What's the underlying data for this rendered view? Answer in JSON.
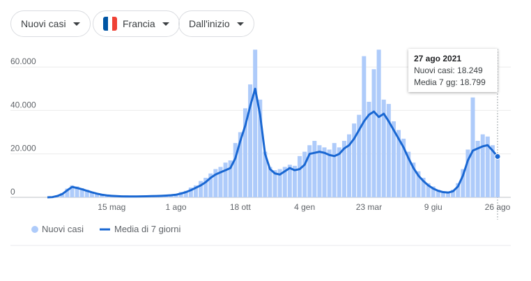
{
  "filters": {
    "metric": "Nuovi casi",
    "country": "Francia",
    "range": "Dall'inizio"
  },
  "tooltip": {
    "date": "27 ago 2021",
    "cases": "Nuovi casi: 18.249",
    "average": "Media 7 gg: 18.799"
  },
  "chart_data": {
    "type": "bar-line",
    "categories": [
      null,
      null,
      null,
      null,
      null,
      null,
      null,
      null,
      null,
      null,
      null,
      null,
      null,
      "15 mag",
      null,
      null,
      null,
      null,
      null,
      null,
      null,
      null,
      null,
      null,
      null,
      null,
      "1 ago",
      null,
      null,
      null,
      null,
      null,
      null,
      null,
      null,
      null,
      null,
      null,
      null,
      "18 ott",
      null,
      null,
      null,
      null,
      null,
      null,
      null,
      null,
      null,
      null,
      null,
      null,
      "4 gen",
      null,
      null,
      null,
      null,
      null,
      null,
      null,
      null,
      null,
      null,
      null,
      null,
      "23 mar",
      null,
      null,
      null,
      null,
      null,
      null,
      null,
      null,
      null,
      null,
      null,
      null,
      "9 giu",
      null,
      null,
      null,
      null,
      null,
      null,
      null,
      null,
      null,
      null,
      null,
      null,
      "26 ago"
    ],
    "series": [
      {
        "name": "Nuovi casi",
        "kind": "bar",
        "color": "#aecbfa",
        "values": [
          0,
          200,
          900,
          2000,
          4000,
          5500,
          5000,
          4200,
          3500,
          2600,
          1900,
          1400,
          1000,
          800,
          600,
          500,
          900,
          450,
          500,
          550,
          600,
          700,
          750,
          900,
          1000,
          1300,
          1500,
          2500,
          3000,
          4500,
          5500,
          7500,
          9000,
          11000,
          13000,
          14000,
          16000,
          17000,
          25000,
          30000,
          41000,
          52000,
          68000,
          45000,
          21000,
          14000,
          12500,
          13000,
          14000,
          15000,
          14500,
          19000,
          21000,
          24000,
          26000,
          24000,
          23000,
          22000,
          25000,
          23000,
          26000,
          29000,
          34000,
          38000,
          65000,
          44000,
          59000,
          68000,
          45000,
          43000,
          35000,
          31000,
          27000,
          21000,
          16000,
          12000,
          9000,
          6500,
          5000,
          3500,
          2800,
          2600,
          3500,
          6500,
          13000,
          22000,
          46000,
          26000,
          29000,
          28000,
          24000,
          18249
        ]
      },
      {
        "name": "Media di 7 giorni",
        "kind": "line",
        "color": "#1967d2",
        "values": [
          0,
          100,
          600,
          1500,
          3200,
          4800,
          4300,
          3700,
          3000,
          2300,
          1700,
          1200,
          900,
          700,
          550,
          450,
          400,
          400,
          420,
          450,
          500,
          550,
          600,
          700,
          800,
          950,
          1200,
          1700,
          2400,
          3300,
          4400,
          5500,
          7000,
          9000,
          10500,
          11500,
          12500,
          13500,
          18000,
          26000,
          33000,
          42000,
          50000,
          38000,
          20000,
          13000,
          11000,
          10500,
          12000,
          13500,
          12500,
          13000,
          15000,
          20000,
          20500,
          21000,
          20500,
          19500,
          19000,
          20000,
          22500,
          24000,
          27000,
          31000,
          35000,
          38000,
          39500,
          37000,
          38500,
          35000,
          31000,
          27000,
          23000,
          18000,
          13500,
          10000,
          7500,
          5500,
          4000,
          3000,
          2400,
          2200,
          2800,
          5000,
          10000,
          17000,
          21500,
          22500,
          23500,
          24000,
          21500,
          18799
        ]
      }
    ],
    "ylim": [
      0,
      70000
    ],
    "yticks": [
      0,
      {
        "value": 20000,
        "label": "20.000"
      },
      {
        "value": 40000,
        "label": "40.000"
      },
      {
        "value": 60000,
        "label": "60.000"
      }
    ],
    "grid": true
  }
}
